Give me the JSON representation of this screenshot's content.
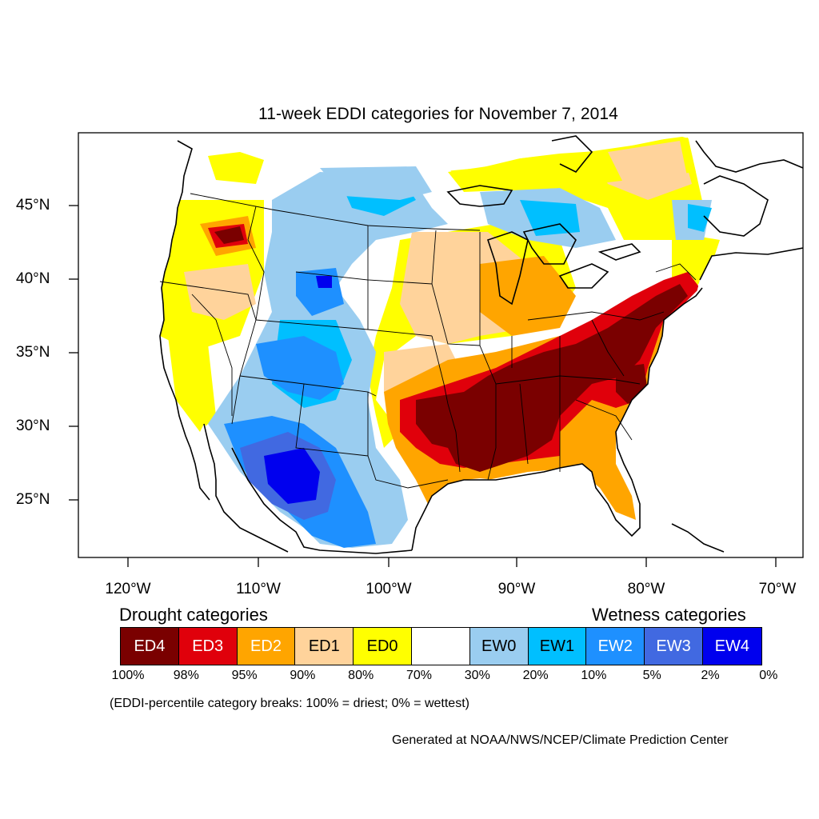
{
  "title": "11-week EDDI categories for November 7, 2014",
  "lat_labels": [
    "45°N",
    "40°N",
    "35°N",
    "30°N",
    "25°N"
  ],
  "lon_labels": [
    "120°W",
    "110°W",
    "100°W",
    "90°W",
    "80°W",
    "70°W"
  ],
  "drought_heading": "Drought categories",
  "wetness_heading": "Wetness categories",
  "legend": [
    {
      "label": "ED4",
      "color": "#7a0000",
      "text_color": "#ffffff"
    },
    {
      "label": "ED3",
      "color": "#e0000b",
      "text_color": "#ffffff"
    },
    {
      "label": "ED2",
      "color": "#ffa500",
      "text_color": "#ffffff"
    },
    {
      "label": "ED1",
      "color": "#ffd39b",
      "text_color": "#000000"
    },
    {
      "label": "ED0",
      "color": "#ffff00",
      "text_color": "#000000"
    },
    {
      "label": "",
      "color": "#ffffff",
      "text_color": "#000000"
    },
    {
      "label": "EW0",
      "color": "#9acdf0",
      "text_color": "#000000"
    },
    {
      "label": "EW1",
      "color": "#00bfff",
      "text_color": "#000000"
    },
    {
      "label": "EW2",
      "color": "#1e90ff",
      "text_color": "#ffffff"
    },
    {
      "label": "EW3",
      "color": "#4169e1",
      "text_color": "#ffffff"
    },
    {
      "label": "EW4",
      "color": "#0000ee",
      "text_color": "#ffffff"
    }
  ],
  "percentile_breaks": [
    "100%",
    "98%",
    "95%",
    "90%",
    "80%",
    "70%",
    "30%",
    "20%",
    "10%",
    "5%",
    "2%",
    "0%"
  ],
  "note": "(EDDI-percentile category breaks: 100% = driest; 0% = wettest)",
  "credit": "Generated at NOAA/NWS/NCEP/Climate Prediction Center"
}
